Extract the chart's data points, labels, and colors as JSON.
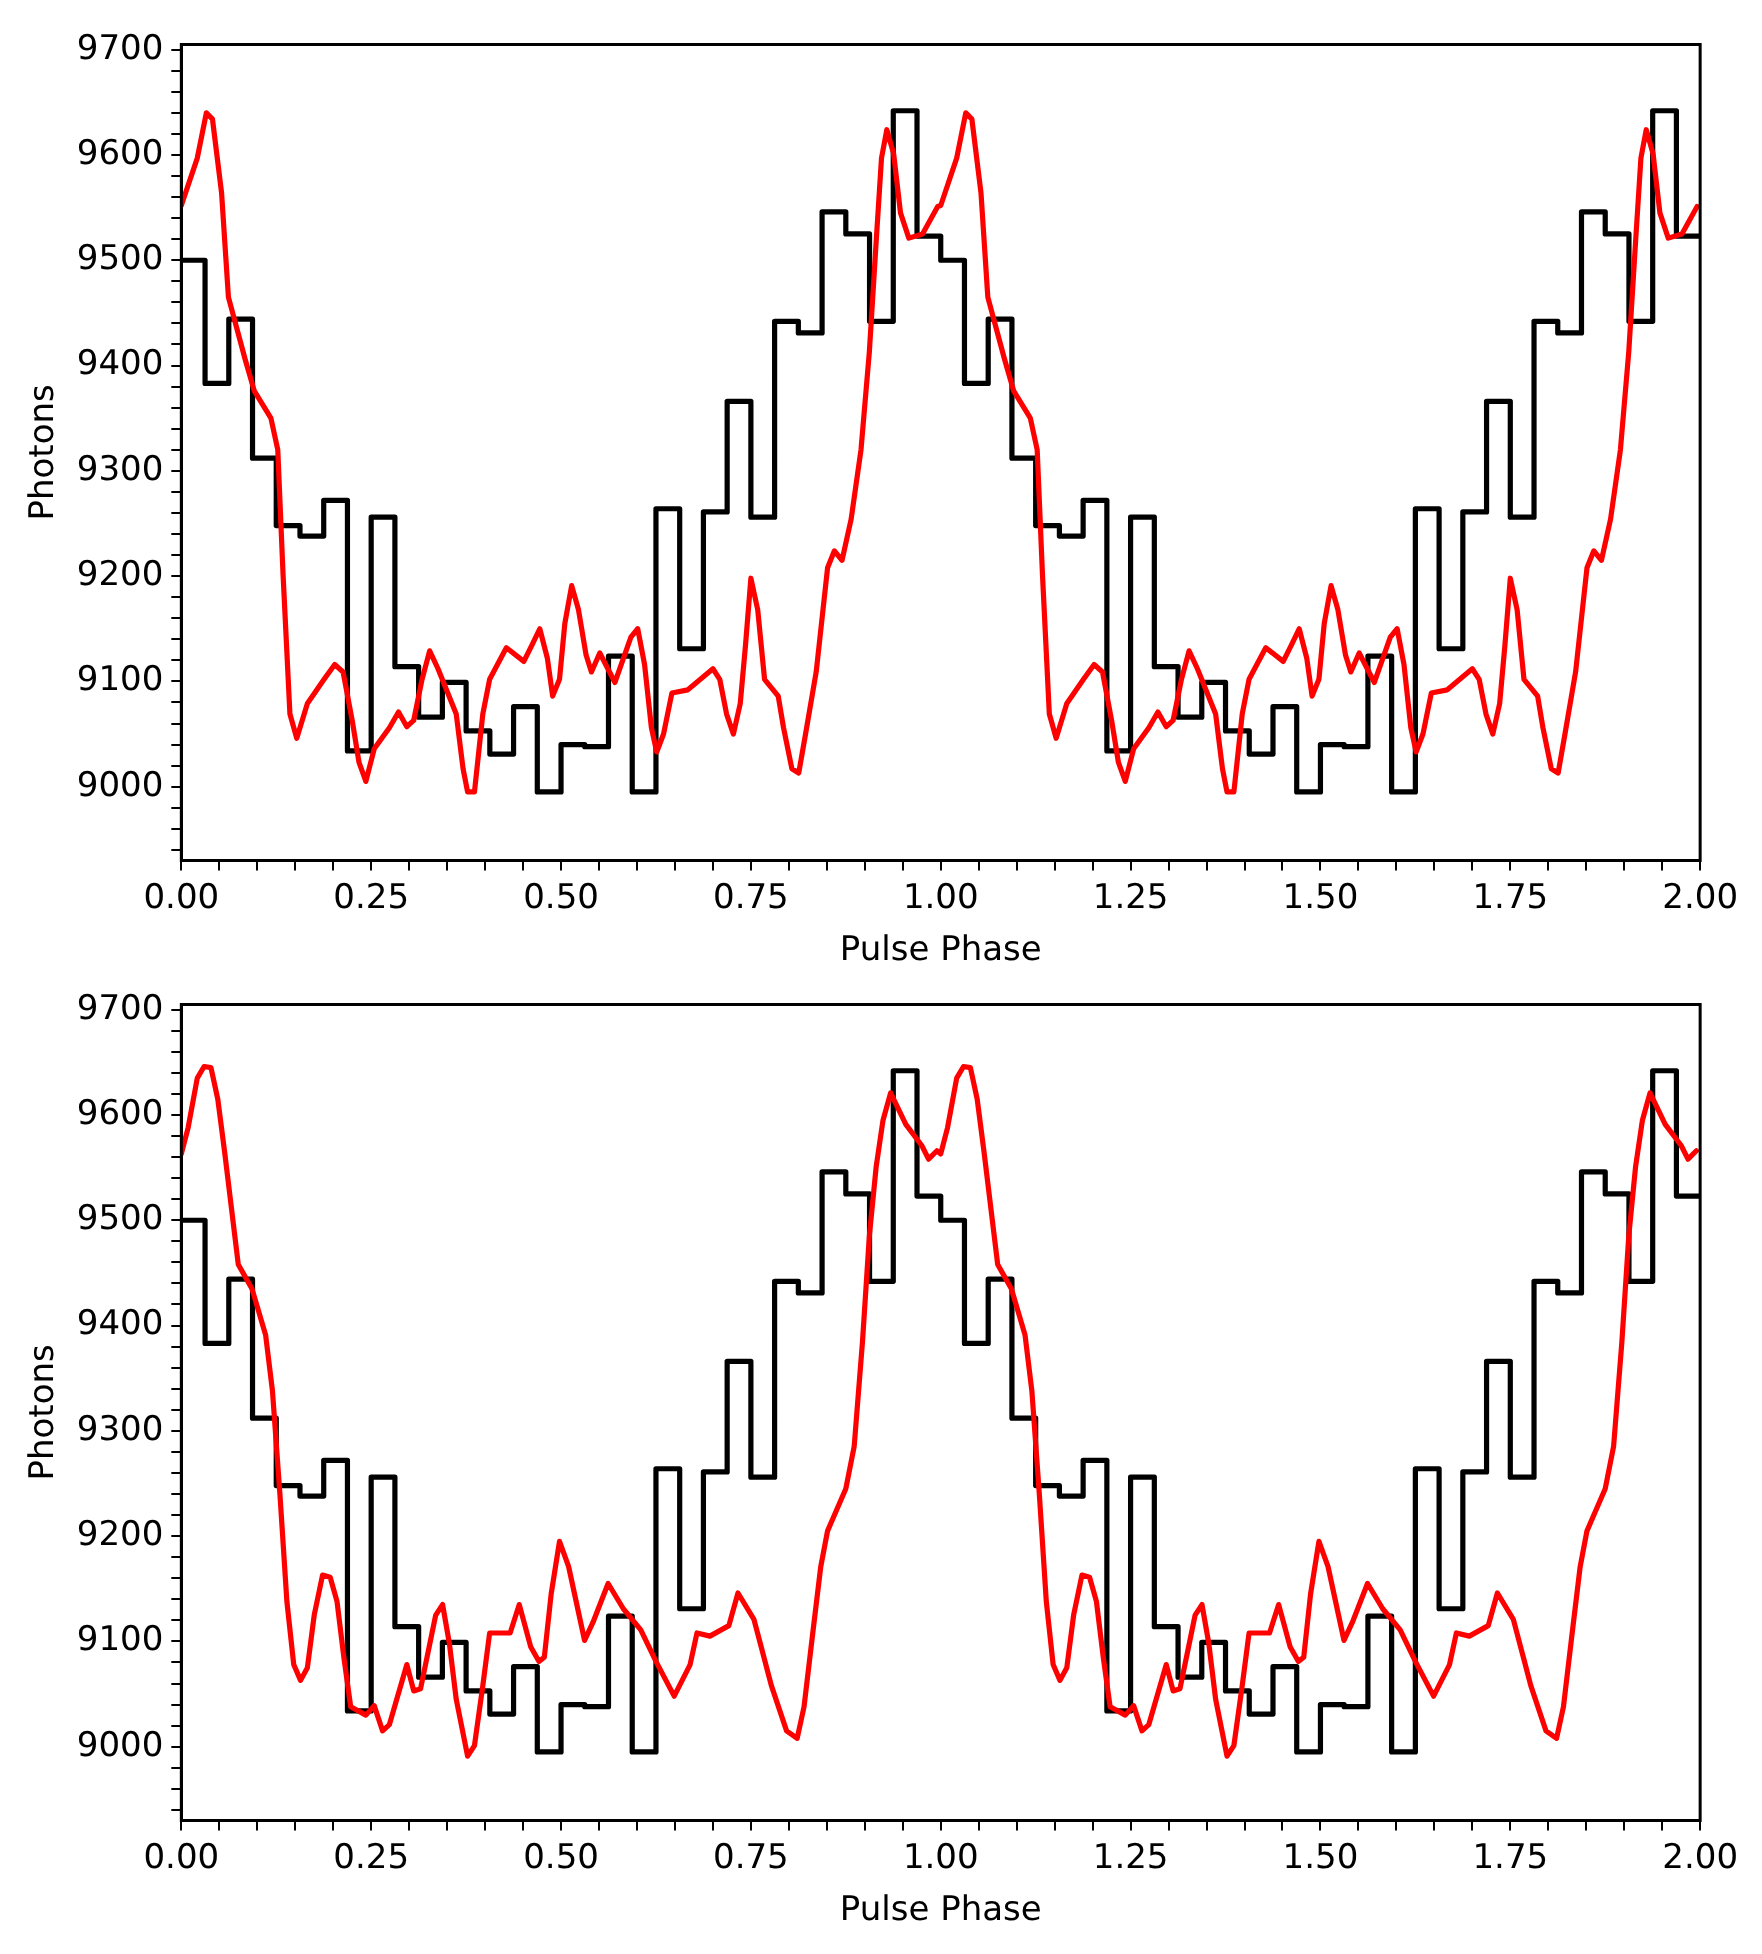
{
  "chart_data": [
    {
      "type": "histogram",
      "xlabel": "Pulse Phase",
      "ylabel": "Photons",
      "xlim": [
        0,
        2
      ],
      "ylim": [
        8930,
        9705
      ],
      "xticks": [
        {
          "value": 0,
          "label": "0.00"
        },
        {
          "value": 0.05,
          "label": null
        },
        {
          "value": 0.1,
          "label": null
        },
        {
          "value": 0.15,
          "label": null
        },
        {
          "value": 0.2,
          "label": null
        },
        {
          "value": 0.25,
          "label": "0.25"
        },
        {
          "value": 0.3,
          "label": null
        },
        {
          "value": 0.35,
          "label": null
        },
        {
          "value": 0.4,
          "label": null
        },
        {
          "value": 0.45,
          "label": null
        },
        {
          "value": 0.5,
          "label": "0.50"
        },
        {
          "value": 0.55,
          "label": null
        },
        {
          "value": 0.6,
          "label": null
        },
        {
          "value": 0.65,
          "label": null
        },
        {
          "value": 0.7,
          "label": null
        },
        {
          "value": 0.75,
          "label": "0.75"
        },
        {
          "value": 0.8,
          "label": null
        },
        {
          "value": 0.85,
          "label": null
        },
        {
          "value": 0.9,
          "label": null
        },
        {
          "value": 0.95,
          "label": null
        },
        {
          "value": 1,
          "label": "1.00"
        },
        {
          "value": 1.05,
          "label": null
        },
        {
          "value": 1.1,
          "label": null
        },
        {
          "value": 1.15,
          "label": null
        },
        {
          "value": 1.2,
          "label": null
        },
        {
          "value": 1.25,
          "label": "1.25"
        },
        {
          "value": 1.3,
          "label": null
        },
        {
          "value": 1.35,
          "label": null
        },
        {
          "value": 1.4,
          "label": null
        },
        {
          "value": 1.45,
          "label": null
        },
        {
          "value": 1.5,
          "label": "1.50"
        },
        {
          "value": 1.55,
          "label": null
        },
        {
          "value": 1.6,
          "label": null
        },
        {
          "value": 1.65,
          "label": null
        },
        {
          "value": 1.7,
          "label": null
        },
        {
          "value": 1.75,
          "label": "1.75"
        },
        {
          "value": 1.8,
          "label": null
        },
        {
          "value": 1.85,
          "label": null
        },
        {
          "value": 1.9,
          "label": null
        },
        {
          "value": 1.95,
          "label": null
        },
        {
          "value": 2,
          "label": "2.00"
        }
      ],
      "yticks": [
        {
          "value": 8940,
          "label": null
        },
        {
          "value": 8960,
          "label": null
        },
        {
          "value": 8980,
          "label": null
        },
        9000,
        {
          "value": 9020,
          "label": null
        },
        {
          "value": 9040,
          "label": null
        },
        {
          "value": 9060,
          "label": null
        },
        {
          "value": 9080,
          "label": null
        },
        9100,
        {
          "value": 9120,
          "label": null
        },
        {
          "value": 9140,
          "label": null
        },
        {
          "value": 9160,
          "label": null
        },
        {
          "value": 9180,
          "label": null
        },
        9200,
        {
          "value": 9220,
          "label": null
        },
        {
          "value": 9240,
          "label": null
        },
        {
          "value": 9260,
          "label": null
        },
        {
          "value": 9280,
          "label": null
        },
        9300,
        {
          "value": 9320,
          "label": null
        },
        {
          "value": 9340,
          "label": null
        },
        {
          "value": 9360,
          "label": null
        },
        {
          "value": 9380,
          "label": null
        },
        9400,
        {
          "value": 9420,
          "label": null
        },
        {
          "value": 9440,
          "label": null
        },
        {
          "value": 9460,
          "label": null
        },
        {
          "value": 9480,
          "label": null
        },
        9500,
        {
          "value": 9520,
          "label": null
        },
        {
          "value": 9540,
          "label": null
        },
        {
          "value": 9560,
          "label": null
        },
        {
          "value": 9580,
          "label": null
        },
        9600,
        {
          "value": 9620,
          "label": null
        },
        {
          "value": 9640,
          "label": null
        },
        {
          "value": 9660,
          "label": null
        },
        {
          "value": 9680,
          "label": null
        },
        9700
      ],
      "bins": [
        0,
        0.03125,
        0.0625,
        0.09375,
        0.125,
        0.15625,
        0.1875,
        0.21875,
        0.25,
        0.28125,
        0.3125,
        0.34375,
        0.375,
        0.40625,
        0.4375,
        0.46875,
        0.5,
        0.53125,
        0.5625,
        0.59375,
        0.625,
        0.65625,
        0.6875,
        0.71875,
        0.75,
        0.78125,
        0.8125,
        0.84375,
        0.875,
        0.90625,
        0.9375,
        0.96875,
        1,
        1.03125,
        1.0625,
        1.09375,
        1.125,
        1.15625,
        1.1875,
        1.21875,
        1.25,
        1.28125,
        1.3125,
        1.34375,
        1.375,
        1.40625,
        1.4375,
        1.46875,
        1.5,
        1.53125,
        1.5625,
        1.59375,
        1.625,
        1.65625,
        1.6875,
        1.71875,
        1.75,
        1.78125,
        1.8125,
        1.84375,
        1.875,
        1.90625,
        1.9375,
        1.96875,
        2
      ],
      "series": [
        {
          "color": "#000000",
          "values": [
            9500,
            9383,
            9444,
            9312,
            9248,
            9238,
            9272,
            9034,
            9256,
            9114,
            9066,
            9099,
            9053,
            9031,
            9076,
            8995,
            9040,
            9038,
            9124,
            8995,
            9264,
            9131,
            9261,
            9366,
            9256,
            9442,
            9431,
            9546,
            9525,
            9442,
            9642,
            9523,
            9500,
            9383,
            9444,
            9312,
            9248,
            9238,
            9272,
            9034,
            9256,
            9114,
            9066,
            9099,
            9053,
            9031,
            9076,
            8995,
            9040,
            9038,
            9124,
            8995,
            9264,
            9131,
            9261,
            9366,
            9256,
            9442,
            9431,
            9546,
            9525,
            9442,
            9642,
            9523
          ]
        },
        {
          "type": "line",
          "color": "#ff0000",
          "x": [
            0,
            0.021,
            0.033,
            0.041,
            0.053,
            0.062,
            0.084,
            0.096,
            0.118,
            0.127,
            0.134,
            0.143,
            0.152,
            0.166,
            0.188,
            0.202,
            0.213,
            0.225,
            0.234,
            0.243,
            0.254,
            0.274,
            0.286,
            0.297,
            0.306,
            0.317,
            0.327,
            0.338,
            0.362,
            0.371,
            0.377,
            0.386,
            0.397,
            0.406,
            0.428,
            0.451,
            0.462,
            0.472,
            0.482,
            0.489,
            0.498,
            0.505,
            0.514,
            0.523,
            0.533,
            0.54,
            0.551,
            0.571,
            0.592,
            0.601,
            0.61,
            0.619,
            0.626,
            0.635,
            0.646,
            0.667,
            0.7,
            0.709,
            0.718,
            0.727,
            0.736,
            0.743,
            0.75,
            0.759,
            0.768,
            0.786,
            0.793,
            0.804,
            0.813,
            0.822,
            0.836,
            0.851,
            0.86,
            0.87,
            0.882,
            0.895,
            0.906,
            0.915,
            0.922,
            0.929,
            0.938,
            0.947,
            0.958,
            0.976,
            0.996,
            1,
            1.021,
            1.033,
            1.041,
            1.053,
            1.062,
            1.084,
            1.096,
            1.118,
            1.127,
            1.134,
            1.143,
            1.152,
            1.166,
            1.188,
            1.202,
            1.213,
            1.225,
            1.234,
            1.243,
            1.254,
            1.274,
            1.286,
            1.297,
            1.306,
            1.317,
            1.327,
            1.338,
            1.362,
            1.371,
            1.377,
            1.386,
            1.397,
            1.406,
            1.428,
            1.451,
            1.462,
            1.472,
            1.482,
            1.489,
            1.498,
            1.505,
            1.514,
            1.523,
            1.533,
            1.54,
            1.551,
            1.571,
            1.592,
            1.601,
            1.61,
            1.619,
            1.626,
            1.635,
            1.646,
            1.667,
            1.7,
            1.709,
            1.718,
            1.727,
            1.736,
            1.743,
            1.75,
            1.759,
            1.768,
            1.786,
            1.793,
            1.804,
            1.813,
            1.822,
            1.836,
            1.851,
            1.86,
            1.87,
            1.882,
            1.895,
            1.906,
            1.915,
            1.922,
            1.929,
            1.938,
            1.947,
            1.958,
            1.976,
            1.996
          ],
          "values": [
            9552,
            9597,
            9640,
            9634,
            9564,
            9465,
            9406,
            9376,
            9350,
            9320,
            9201,
            9069,
            9046,
            9079,
            9102,
            9116,
            9109,
            9063,
            9023,
            9005,
            9036,
            9056,
            9071,
            9057,
            9063,
            9102,
            9129,
            9112,
            9069,
            9017,
            8995,
            8995,
            9069,
            9102,
            9132,
            9119,
            9135,
            9150,
            9122,
            9086,
            9102,
            9155,
            9191,
            9168,
            9125,
            9109,
            9127,
            9099,
            9142,
            9150,
            9116,
            9056,
            9033,
            9050,
            9089,
            9092,
            9112,
            9102,
            9069,
            9050,
            9079,
            9135,
            9198,
            9168,
            9102,
            9086,
            9056,
            9017,
            9013,
            9050,
            9109,
            9208,
            9224,
            9215,
            9254,
            9320,
            9413,
            9518,
            9597,
            9624,
            9601,
            9545,
            9521,
            9525,
            9551,
            9552,
            9597,
            9640,
            9634,
            9564,
            9465,
            9406,
            9376,
            9350,
            9320,
            9201,
            9069,
            9046,
            9079,
            9102,
            9116,
            9109,
            9063,
            9023,
            9005,
            9036,
            9056,
            9071,
            9057,
            9063,
            9102,
            9129,
            9112,
            9069,
            9017,
            8995,
            8995,
            9069,
            9102,
            9132,
            9119,
            9135,
            9150,
            9122,
            9086,
            9102,
            9155,
            9191,
            9168,
            9125,
            9109,
            9127,
            9099,
            9142,
            9150,
            9116,
            9056,
            9033,
            9050,
            9089,
            9092,
            9112,
            9102,
            9069,
            9050,
            9079,
            9135,
            9198,
            9168,
            9102,
            9086,
            9056,
            9017,
            9013,
            9050,
            9109,
            9208,
            9224,
            9215,
            9254,
            9320,
            9413,
            9518,
            9597,
            9624,
            9601,
            9545,
            9521,
            9525,
            9551
          ]
        }
      ]
    },
    {
      "type": "histogram",
      "xlabel": "Pulse Phase",
      "ylabel": "Photons",
      "xlim": [
        0,
        2
      ],
      "ylim": [
        8930,
        9705
      ],
      "xticks": [
        {
          "value": 0,
          "label": "0.00"
        },
        {
          "value": 0.05,
          "label": null
        },
        {
          "value": 0.1,
          "label": null
        },
        {
          "value": 0.15,
          "label": null
        },
        {
          "value": 0.2,
          "label": null
        },
        {
          "value": 0.25,
          "label": "0.25"
        },
        {
          "value": 0.3,
          "label": null
        },
        {
          "value": 0.35,
          "label": null
        },
        {
          "value": 0.4,
          "label": null
        },
        {
          "value": 0.45,
          "label": null
        },
        {
          "value": 0.5,
          "label": "0.50"
        },
        {
          "value": 0.55,
          "label": null
        },
        {
          "value": 0.6,
          "label": null
        },
        {
          "value": 0.65,
          "label": null
        },
        {
          "value": 0.7,
          "label": null
        },
        {
          "value": 0.75,
          "label": "0.75"
        },
        {
          "value": 0.8,
          "label": null
        },
        {
          "value": 0.85,
          "label": null
        },
        {
          "value": 0.9,
          "label": null
        },
        {
          "value": 0.95,
          "label": null
        },
        {
          "value": 1,
          "label": "1.00"
        },
        {
          "value": 1.05,
          "label": null
        },
        {
          "value": 1.1,
          "label": null
        },
        {
          "value": 1.15,
          "label": null
        },
        {
          "value": 1.2,
          "label": null
        },
        {
          "value": 1.25,
          "label": "1.25"
        },
        {
          "value": 1.3,
          "label": null
        },
        {
          "value": 1.35,
          "label": null
        },
        {
          "value": 1.4,
          "label": null
        },
        {
          "value": 1.45,
          "label": null
        },
        {
          "value": 1.5,
          "label": "1.50"
        },
        {
          "value": 1.55,
          "label": null
        },
        {
          "value": 1.6,
          "label": null
        },
        {
          "value": 1.65,
          "label": null
        },
        {
          "value": 1.7,
          "label": null
        },
        {
          "value": 1.75,
          "label": "1.75"
        },
        {
          "value": 1.8,
          "label": null
        },
        {
          "value": 1.85,
          "label": null
        },
        {
          "value": 1.9,
          "label": null
        },
        {
          "value": 1.95,
          "label": null
        },
        {
          "value": 2,
          "label": "2.00"
        }
      ],
      "yticks": [
        {
          "value": 8940,
          "label": null
        },
        {
          "value": 8960,
          "label": null
        },
        {
          "value": 8980,
          "label": null
        },
        9000,
        {
          "value": 9020,
          "label": null
        },
        {
          "value": 9040,
          "label": null
        },
        {
          "value": 9060,
          "label": null
        },
        {
          "value": 9080,
          "label": null
        },
        9100,
        {
          "value": 9120,
          "label": null
        },
        {
          "value": 9140,
          "label": null
        },
        {
          "value": 9160,
          "label": null
        },
        {
          "value": 9180,
          "label": null
        },
        9200,
        {
          "value": 9220,
          "label": null
        },
        {
          "value": 9240,
          "label": null
        },
        {
          "value": 9260,
          "label": null
        },
        {
          "value": 9280,
          "label": null
        },
        9300,
        {
          "value": 9320,
          "label": null
        },
        {
          "value": 9340,
          "label": null
        },
        {
          "value": 9360,
          "label": null
        },
        {
          "value": 9380,
          "label": null
        },
        9400,
        {
          "value": 9420,
          "label": null
        },
        {
          "value": 9440,
          "label": null
        },
        {
          "value": 9460,
          "label": null
        },
        {
          "value": 9480,
          "label": null
        },
        9500,
        {
          "value": 9520,
          "label": null
        },
        {
          "value": 9540,
          "label": null
        },
        {
          "value": 9560,
          "label": null
        },
        {
          "value": 9580,
          "label": null
        },
        9600,
        {
          "value": 9620,
          "label": null
        },
        {
          "value": 9640,
          "label": null
        },
        {
          "value": 9660,
          "label": null
        },
        {
          "value": 9680,
          "label": null
        },
        9700
      ],
      "bins": [
        0,
        0.03125,
        0.0625,
        0.09375,
        0.125,
        0.15625,
        0.1875,
        0.21875,
        0.25,
        0.28125,
        0.3125,
        0.34375,
        0.375,
        0.40625,
        0.4375,
        0.46875,
        0.5,
        0.53125,
        0.5625,
        0.59375,
        0.625,
        0.65625,
        0.6875,
        0.71875,
        0.75,
        0.78125,
        0.8125,
        0.84375,
        0.875,
        0.90625,
        0.9375,
        0.96875,
        1,
        1.03125,
        1.0625,
        1.09375,
        1.125,
        1.15625,
        1.1875,
        1.21875,
        1.25,
        1.28125,
        1.3125,
        1.34375,
        1.375,
        1.40625,
        1.4375,
        1.46875,
        1.5,
        1.53125,
        1.5625,
        1.59375,
        1.625,
        1.65625,
        1.6875,
        1.71875,
        1.75,
        1.78125,
        1.8125,
        1.84375,
        1.875,
        1.90625,
        1.9375,
        1.96875,
        2
      ],
      "series": [
        {
          "color": "#000000",
          "values": [
            9500,
            9383,
            9444,
            9312,
            9248,
            9238,
            9272,
            9034,
            9256,
            9114,
            9066,
            9099,
            9053,
            9031,
            9076,
            8995,
            9040,
            9038,
            9124,
            8995,
            9264,
            9131,
            9261,
            9366,
            9256,
            9442,
            9431,
            9546,
            9525,
            9442,
            9642,
            9523,
            9500,
            9383,
            9444,
            9312,
            9248,
            9238,
            9272,
            9034,
            9256,
            9114,
            9066,
            9099,
            9053,
            9031,
            9076,
            8995,
            9040,
            9038,
            9124,
            8995,
            9264,
            9131,
            9261,
            9366,
            9256,
            9442,
            9431,
            9546,
            9525,
            9442,
            9642,
            9523
          ]
        },
        {
          "type": "line",
          "color": "#ff0000",
          "x": [
            0,
            0.009,
            0.021,
            0.03,
            0.039,
            0.048,
            0.057,
            0.075,
            0.093,
            0.111,
            0.12,
            0.13,
            0.139,
            0.148,
            0.157,
            0.166,
            0.175,
            0.186,
            0.196,
            0.205,
            0.214,
            0.223,
            0.243,
            0.254,
            0.265,
            0.274,
            0.297,
            0.306,
            0.315,
            0.335,
            0.344,
            0.353,
            0.362,
            0.377,
            0.386,
            0.397,
            0.406,
            0.433,
            0.445,
            0.46,
            0.471,
            0.478,
            0.487,
            0.498,
            0.51,
            0.531,
            0.542,
            0.562,
            0.582,
            0.605,
            0.625,
            0.649,
            0.67,
            0.679,
            0.696,
            0.721,
            0.733,
            0.754,
            0.777,
            0.797,
            0.811,
            0.82,
            0.831,
            0.842,
            0.851,
            0.875,
            0.886,
            0.897,
            0.906,
            0.915,
            0.924,
            0.934,
            0.954,
            0.975,
            0.984,
            0.995,
            1,
            1.009,
            1.021,
            1.03,
            1.039,
            1.048,
            1.057,
            1.075,
            1.093,
            1.111,
            1.12,
            1.13,
            1.139,
            1.148,
            1.157,
            1.166,
            1.175,
            1.186,
            1.196,
            1.205,
            1.214,
            1.223,
            1.243,
            1.254,
            1.265,
            1.274,
            1.297,
            1.306,
            1.315,
            1.335,
            1.344,
            1.353,
            1.362,
            1.377,
            1.386,
            1.397,
            1.406,
            1.433,
            1.445,
            1.46,
            1.471,
            1.478,
            1.487,
            1.498,
            1.51,
            1.531,
            1.542,
            1.562,
            1.582,
            1.605,
            1.625,
            1.649,
            1.67,
            1.679,
            1.696,
            1.721,
            1.733,
            1.754,
            1.777,
            1.797,
            1.811,
            1.82,
            1.831,
            1.842,
            1.851,
            1.875,
            1.886,
            1.897,
            1.906,
            1.915,
            1.924,
            1.934,
            1.954,
            1.975,
            1.984,
            1.995
          ],
          "values": [
            9563,
            9588,
            9635,
            9646,
            9645,
            9615,
            9565,
            9458,
            9435,
            9391,
            9338,
            9238,
            9138,
            9078,
            9063,
            9075,
            9125,
            9163,
            9161,
            9138,
            9085,
            9038,
            9030,
            9039,
            9015,
            9021,
            9078,
            9053,
            9055,
            9125,
            9135,
            9098,
            9045,
            8991,
            9001,
            9058,
            9108,
            9108,
            9135,
            9095,
            9081,
            9085,
            9145,
            9195,
            9171,
            9101,
            9118,
            9155,
            9131,
            9111,
            9081,
            9048,
            9078,
            9108,
            9105,
            9115,
            9146,
            9121,
            9058,
            9015,
            9008,
            9038,
            9105,
            9171,
            9205,
            9245,
            9285,
            9385,
            9485,
            9551,
            9595,
            9621,
            9591,
            9571,
            9558,
            9566,
            9563,
            9588,
            9635,
            9646,
            9645,
            9615,
            9565,
            9458,
            9435,
            9391,
            9338,
            9238,
            9138,
            9078,
            9063,
            9075,
            9125,
            9163,
            9161,
            9138,
            9085,
            9038,
            9030,
            9039,
            9015,
            9021,
            9078,
            9053,
            9055,
            9125,
            9135,
            9098,
            9045,
            8991,
            9001,
            9058,
            9108,
            9108,
            9135,
            9095,
            9081,
            9085,
            9145,
            9195,
            9171,
            9101,
            9118,
            9155,
            9131,
            9111,
            9081,
            9048,
            9078,
            9108,
            9105,
            9115,
            9146,
            9121,
            9058,
            9015,
            9008,
            9038,
            9105,
            9171,
            9205,
            9245,
            9285,
            9385,
            9485,
            9551,
            9595,
            9621,
            9591,
            9571,
            9558,
            9566
          ]
        }
      ]
    }
  ]
}
